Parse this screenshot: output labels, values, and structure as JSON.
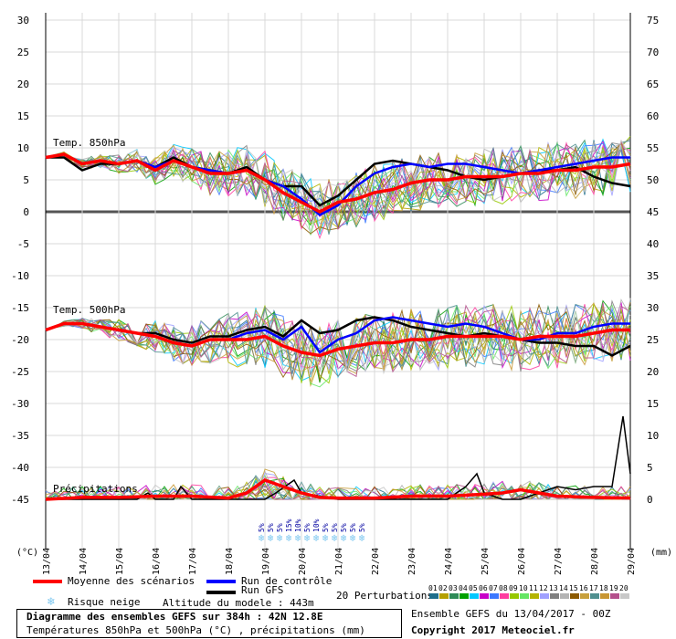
{
  "chart_data": {
    "type": "line",
    "title": "Diagramme des ensembles GEFS sur 384h : 42N 12.8E",
    "subtitle": "Températures 850hPa et 500hPa (°C) , précipitations (mm)",
    "left_axis_ticks": [
      30,
      25,
      20,
      15,
      10,
      5,
      0,
      -5,
      -10,
      -15,
      -20,
      -25,
      -30,
      -35,
      -40,
      -45
    ],
    "right_axis_ticks": [
      75,
      70,
      65,
      60,
      55,
      50,
      45,
      40,
      35,
      30,
      25,
      20,
      15,
      10,
      5,
      0
    ],
    "left_unit": "(°C)",
    "right_unit": "(mm)",
    "x_ticks": [
      "13/04",
      "14/04",
      "15/04",
      "16/04",
      "17/04",
      "18/04",
      "19/04",
      "20/04",
      "21/04",
      "22/04",
      "23/04",
      "24/04",
      "25/04",
      "26/04",
      "27/04",
      "28/04",
      "29/04"
    ],
    "section_labels": {
      "t850": "Temp. 850hPa",
      "t500": "Temp. 500hPa",
      "precip": "Précipitations"
    },
    "snow_risk": [
      {
        "day": 5.9,
        "text": "5%"
      },
      {
        "day": 6.15,
        "text": "5%"
      },
      {
        "day": 6.4,
        "text": "5%"
      },
      {
        "day": 6.65,
        "text": "15%"
      },
      {
        "day": 6.9,
        "text": "10%"
      },
      {
        "day": 7.15,
        "text": "5%"
      },
      {
        "day": 7.4,
        "text": "10%"
      },
      {
        "day": 7.65,
        "text": "5%"
      },
      {
        "day": 7.9,
        "text": "5%"
      },
      {
        "day": 8.15,
        "text": "5%"
      },
      {
        "day": 8.4,
        "text": "5%"
      },
      {
        "day": 8.65,
        "text": "5%"
      }
    ],
    "t850_mean": [
      [
        0,
        8.5
      ],
      [
        0.5,
        9
      ],
      [
        1,
        7.5
      ],
      [
        1.5,
        8
      ],
      [
        2,
        7.5
      ],
      [
        2.5,
        8
      ],
      [
        3,
        6.5
      ],
      [
        3.5,
        8
      ],
      [
        4,
        7
      ],
      [
        4.5,
        6
      ],
      [
        5,
        6
      ],
      [
        5.5,
        6.5
      ],
      [
        6,
        5
      ],
      [
        6.5,
        3
      ],
      [
        7,
        1.5
      ],
      [
        7.5,
        0
      ],
      [
        8,
        1.5
      ],
      [
        8.5,
        2
      ],
      [
        9,
        3
      ],
      [
        9.5,
        3.5
      ],
      [
        10,
        4.5
      ],
      [
        10.5,
        5
      ],
      [
        11,
        5
      ],
      [
        11.5,
        5.5
      ],
      [
        12,
        5.5
      ],
      [
        12.5,
        5.5
      ],
      [
        13,
        6
      ],
      [
        13.5,
        6
      ],
      [
        14,
        6.5
      ],
      [
        14.5,
        6.5
      ],
      [
        15,
        7
      ],
      [
        15.5,
        7
      ],
      [
        16,
        7.5
      ]
    ],
    "t850_control": [
      [
        0,
        8.5
      ],
      [
        0.5,
        9
      ],
      [
        1,
        7.5
      ],
      [
        1.5,
        8
      ],
      [
        2,
        7.5
      ],
      [
        2.5,
        8
      ],
      [
        3,
        7
      ],
      [
        3.5,
        8
      ],
      [
        4,
        7
      ],
      [
        4.5,
        6.5
      ],
      [
        5,
        6
      ],
      [
        5.5,
        6.5
      ],
      [
        6,
        5
      ],
      [
        6.5,
        4
      ],
      [
        7,
        2
      ],
      [
        7.5,
        -0.5
      ],
      [
        8,
        1
      ],
      [
        8.5,
        4
      ],
      [
        9,
        6
      ],
      [
        9.5,
        7
      ],
      [
        10,
        7.5
      ],
      [
        10.5,
        7
      ],
      [
        11,
        7.5
      ],
      [
        11.5,
        7.5
      ],
      [
        12,
        7
      ],
      [
        12.5,
        6.5
      ],
      [
        13,
        6
      ],
      [
        13.5,
        6.5
      ],
      [
        14,
        7
      ],
      [
        14.5,
        7.5
      ],
      [
        15,
        8
      ],
      [
        15.5,
        8.5
      ],
      [
        16,
        8.5
      ]
    ],
    "t850_gfs": [
      [
        0,
        8.5
      ],
      [
        0.5,
        8.5
      ],
      [
        1,
        6.5
      ],
      [
        1.5,
        7.5
      ],
      [
        2,
        7.5
      ],
      [
        2.5,
        8
      ],
      [
        3,
        7
      ],
      [
        3.5,
        8.5
      ],
      [
        4,
        7
      ],
      [
        4.5,
        6.5
      ],
      [
        5,
        6
      ],
      [
        5.5,
        7
      ],
      [
        6,
        5
      ],
      [
        6.5,
        4
      ],
      [
        7,
        4
      ],
      [
        7.5,
        1
      ],
      [
        8,
        2.5
      ],
      [
        8.5,
        5
      ],
      [
        9,
        7.5
      ],
      [
        9.5,
        8
      ],
      [
        10,
        7.5
      ],
      [
        10.5,
        7
      ],
      [
        11,
        6.5
      ],
      [
        11.5,
        5.5
      ],
      [
        12,
        5
      ],
      [
        12.5,
        5.5
      ],
      [
        13,
        6
      ],
      [
        13.5,
        6.5
      ],
      [
        14,
        6.5
      ],
      [
        14.5,
        7
      ],
      [
        15,
        5.5
      ],
      [
        15.5,
        4.5
      ],
      [
        16,
        4
      ]
    ],
    "t500_mean": [
      [
        0,
        -18.5
      ],
      [
        0.5,
        -17.5
      ],
      [
        1,
        -17.5
      ],
      [
        1.5,
        -18
      ],
      [
        2,
        -18.5
      ],
      [
        2.5,
        -19
      ],
      [
        3,
        -19.5
      ],
      [
        3.5,
        -20.5
      ],
      [
        4,
        -21
      ],
      [
        4.5,
        -20
      ],
      [
        5,
        -20
      ],
      [
        5.5,
        -20
      ],
      [
        6,
        -19.5
      ],
      [
        6.5,
        -21
      ],
      [
        7,
        -22
      ],
      [
        7.5,
        -22.5
      ],
      [
        8,
        -21.5
      ],
      [
        8.5,
        -21
      ],
      [
        9,
        -20.5
      ],
      [
        9.5,
        -20.5
      ],
      [
        10,
        -20
      ],
      [
        10.5,
        -20
      ],
      [
        11,
        -19.5
      ],
      [
        11.5,
        -19.5
      ],
      [
        12,
        -19.5
      ],
      [
        12.5,
        -19.5
      ],
      [
        13,
        -20
      ],
      [
        13.5,
        -19.5
      ],
      [
        14,
        -19.5
      ],
      [
        14.5,
        -19.5
      ],
      [
        15,
        -19
      ],
      [
        15.5,
        -18.5
      ],
      [
        16,
        -18.5
      ]
    ],
    "t500_control": [
      [
        0,
        -18.5
      ],
      [
        0.5,
        -17.5
      ],
      [
        1,
        -17.5
      ],
      [
        1.5,
        -18
      ],
      [
        2,
        -18.5
      ],
      [
        2.5,
        -19
      ],
      [
        3,
        -19.5
      ],
      [
        3.5,
        -20.5
      ],
      [
        4,
        -21
      ],
      [
        4.5,
        -20
      ],
      [
        5,
        -20
      ],
      [
        5.5,
        -19
      ],
      [
        6,
        -18.5
      ],
      [
        6.5,
        -20
      ],
      [
        7,
        -18
      ],
      [
        7.5,
        -22
      ],
      [
        8,
        -20
      ],
      [
        8.5,
        -19
      ],
      [
        9,
        -17
      ],
      [
        9.5,
        -16.5
      ],
      [
        10,
        -17
      ],
      [
        10.5,
        -17.5
      ],
      [
        11,
        -18
      ],
      [
        11.5,
        -17.5
      ],
      [
        12,
        -18
      ],
      [
        12.5,
        -19
      ],
      [
        13,
        -20
      ],
      [
        13.5,
        -20
      ],
      [
        14,
        -19
      ],
      [
        14.5,
        -19
      ],
      [
        15,
        -18
      ],
      [
        15.5,
        -17.5
      ],
      [
        16,
        -17.5
      ]
    ],
    "t500_gfs": [
      [
        0,
        -18.5
      ],
      [
        0.5,
        -17.5
      ],
      [
        1,
        -17.5
      ],
      [
        1.5,
        -18
      ],
      [
        2,
        -18.5
      ],
      [
        2.5,
        -19
      ],
      [
        3,
        -19
      ],
      [
        3.5,
        -20
      ],
      [
        4,
        -20.5
      ],
      [
        4.5,
        -19.5
      ],
      [
        5,
        -19.5
      ],
      [
        5.5,
        -18.5
      ],
      [
        6,
        -18
      ],
      [
        6.5,
        -19.5
      ],
      [
        7,
        -17
      ],
      [
        7.5,
        -19
      ],
      [
        8,
        -18.5
      ],
      [
        8.5,
        -17
      ],
      [
        9,
        -16.5
      ],
      [
        9.5,
        -17
      ],
      [
        10,
        -18
      ],
      [
        10.5,
        -18.5
      ],
      [
        11,
        -19
      ],
      [
        11.5,
        -19.5
      ],
      [
        12,
        -19
      ],
      [
        12.5,
        -19.5
      ],
      [
        13,
        -20
      ],
      [
        13.5,
        -20.5
      ],
      [
        14,
        -20.5
      ],
      [
        14.5,
        -21
      ],
      [
        15,
        -21
      ],
      [
        15.5,
        -22.5
      ],
      [
        16,
        -21
      ]
    ],
    "precip_mean": [
      [
        0,
        0
      ],
      [
        1,
        0.3
      ],
      [
        2,
        0.3
      ],
      [
        3,
        0.5
      ],
      [
        4,
        0.5
      ],
      [
        5,
        0.2
      ],
      [
        5.5,
        1
      ],
      [
        6,
        3
      ],
      [
        6.5,
        2
      ],
      [
        7,
        1
      ],
      [
        7.5,
        0.3
      ],
      [
        8,
        0.2
      ],
      [
        9,
        0.2
      ],
      [
        10,
        0.5
      ],
      [
        11,
        0.5
      ],
      [
        12,
        0.8
      ],
      [
        12.5,
        1
      ],
      [
        13,
        1.5
      ],
      [
        13.5,
        1
      ],
      [
        14,
        0.5
      ],
      [
        15,
        0.3
      ],
      [
        16,
        0.2
      ]
    ],
    "precip_gfs": [
      [
        0,
        0
      ],
      [
        2.5,
        0
      ],
      [
        2.8,
        1
      ],
      [
        3,
        0
      ],
      [
        3.5,
        0
      ],
      [
        3.7,
        2
      ],
      [
        4,
        0
      ],
      [
        6,
        0
      ],
      [
        6.3,
        1
      ],
      [
        6.8,
        3
      ],
      [
        7,
        1
      ],
      [
        8,
        0
      ],
      [
        10,
        0
      ],
      [
        11,
        0
      ],
      [
        11.5,
        2
      ],
      [
        11.8,
        4
      ],
      [
        12,
        1
      ],
      [
        12.5,
        0
      ],
      [
        13,
        0
      ],
      [
        13.5,
        1
      ],
      [
        14,
        2
      ],
      [
        14.5,
        1.5
      ],
      [
        15,
        2
      ],
      [
        15.5,
        2
      ],
      [
        15.8,
        13
      ],
      [
        16,
        4
      ]
    ],
    "perturbation_colors": [
      "#1e6e8c",
      "#b4a000",
      "#2e8b57",
      "#00a000",
      "#00c8ff",
      "#c800c8",
      "#3c78ff",
      "#ff3ca0",
      "#96c800",
      "#64e664",
      "#b4b400",
      "#a0a0ff",
      "#808080",
      "#b4b4b4",
      "#8c5a00",
      "#c8a03c",
      "#509090",
      "#c89632",
      "#b4508c",
      "#c8c8c8"
    ],
    "perturbation_numbers": [
      "01",
      "02",
      "03",
      "04",
      "05",
      "06",
      "07",
      "08",
      "09",
      "10",
      "11",
      "12",
      "13",
      "14",
      "15",
      "16",
      "17",
      "18",
      "19",
      "20"
    ]
  },
  "legend": {
    "mean": "Moyenne des scénarios",
    "control": "Run de contrôle",
    "gfs": "Run GFS",
    "snow": "Risque neige",
    "altitude": "Altitude du modele : 443m",
    "perturbations": "20 Perturbations"
  },
  "footer": {
    "title": "Diagramme des ensembles GEFS sur 384h : 42N 12.8E",
    "subtitle": "Températures 850hPa et 500hPa (°C) , précipitations (mm)",
    "run": "Ensemble GEFS du 13/04/2017 - 00Z",
    "copyright": "Copyright 2017 Meteociel.fr"
  },
  "colors": {
    "mean": "#ff0000",
    "control": "#0000ff",
    "gfs": "#000000",
    "zero_line": "#555555",
    "snow": "#7ec8f0"
  }
}
